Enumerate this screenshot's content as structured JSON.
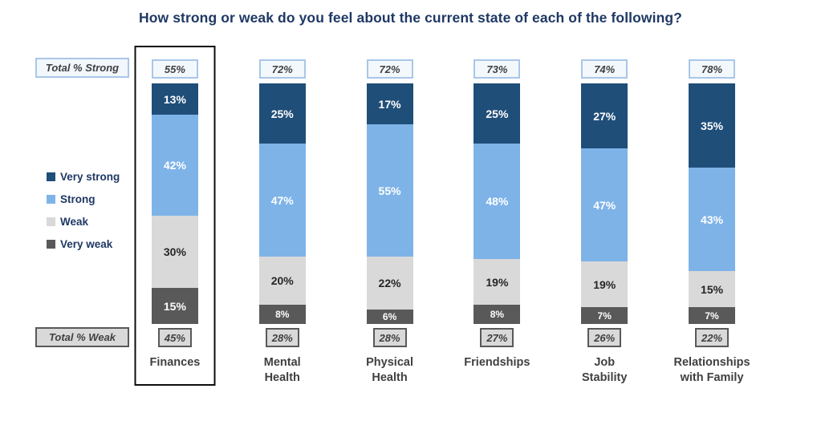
{
  "title": "How strong or weak do you feel about the current state of each of the following?",
  "labels": {
    "total_strong": "Total % Strong",
    "total_weak": "Total % Weak"
  },
  "legend": {
    "position": "left",
    "items": [
      {
        "label": "Very strong",
        "color": "#1f4e79"
      },
      {
        "label": "Strong",
        "color": "#7eb3e8"
      },
      {
        "label": "Weak",
        "color": "#d9d9d9"
      },
      {
        "label": "Very weak",
        "color": "#595959"
      }
    ]
  },
  "chart_data": {
    "type": "bar",
    "stacked": true,
    "orientation": "vertical",
    "title": "How strong or weak do you feel about the current state of each of the following?",
    "categories": [
      "Finances",
      "Mental Health",
      "Physical Health",
      "Friendships",
      "Job Stability",
      "Relationships with Family"
    ],
    "category_label_lines": [
      [
        "Finances"
      ],
      [
        "Mental",
        "Health"
      ],
      [
        "Physical",
        "Health"
      ],
      [
        "Friendships"
      ],
      [
        "Job",
        "Stability"
      ],
      [
        "Relationships",
        "with Family"
      ]
    ],
    "series": [
      {
        "name": "Very strong",
        "color": "#1f4e79",
        "label_color": "#ffffff",
        "values": [
          13,
          25,
          17,
          25,
          27,
          35
        ]
      },
      {
        "name": "Strong",
        "color": "#7eb3e8",
        "label_color": "#ffffff",
        "values": [
          42,
          47,
          55,
          48,
          47,
          43
        ]
      },
      {
        "name": "Weak",
        "color": "#d9d9d9",
        "label_color": "#262626",
        "values": [
          30,
          20,
          22,
          19,
          19,
          15
        ]
      },
      {
        "name": "Very weak",
        "color": "#595959",
        "label_color": "#ffffff",
        "values": [
          15,
          8,
          6,
          8,
          7,
          7
        ]
      }
    ],
    "totals_strong": [
      "55%",
      "72%",
      "72%",
      "73%",
      "74%",
      "78%"
    ],
    "totals_weak": [
      "45%",
      "28%",
      "28%",
      "27%",
      "26%",
      "22%"
    ],
    "highlighted_category": "Finances",
    "value_suffix": "%",
    "ylim": [
      0,
      100
    ],
    "grid": false,
    "legend_position": "left"
  },
  "colors": {
    "title_text": "#1f3864",
    "category_text": "#404040",
    "strong_badge_border": "#a9c7e7",
    "strong_badge_bg": "#f1f7fc",
    "weak_badge_border": "#595959",
    "weak_badge_bg": "#d9d9d9",
    "highlight_outline": "#0d0d0d"
  }
}
